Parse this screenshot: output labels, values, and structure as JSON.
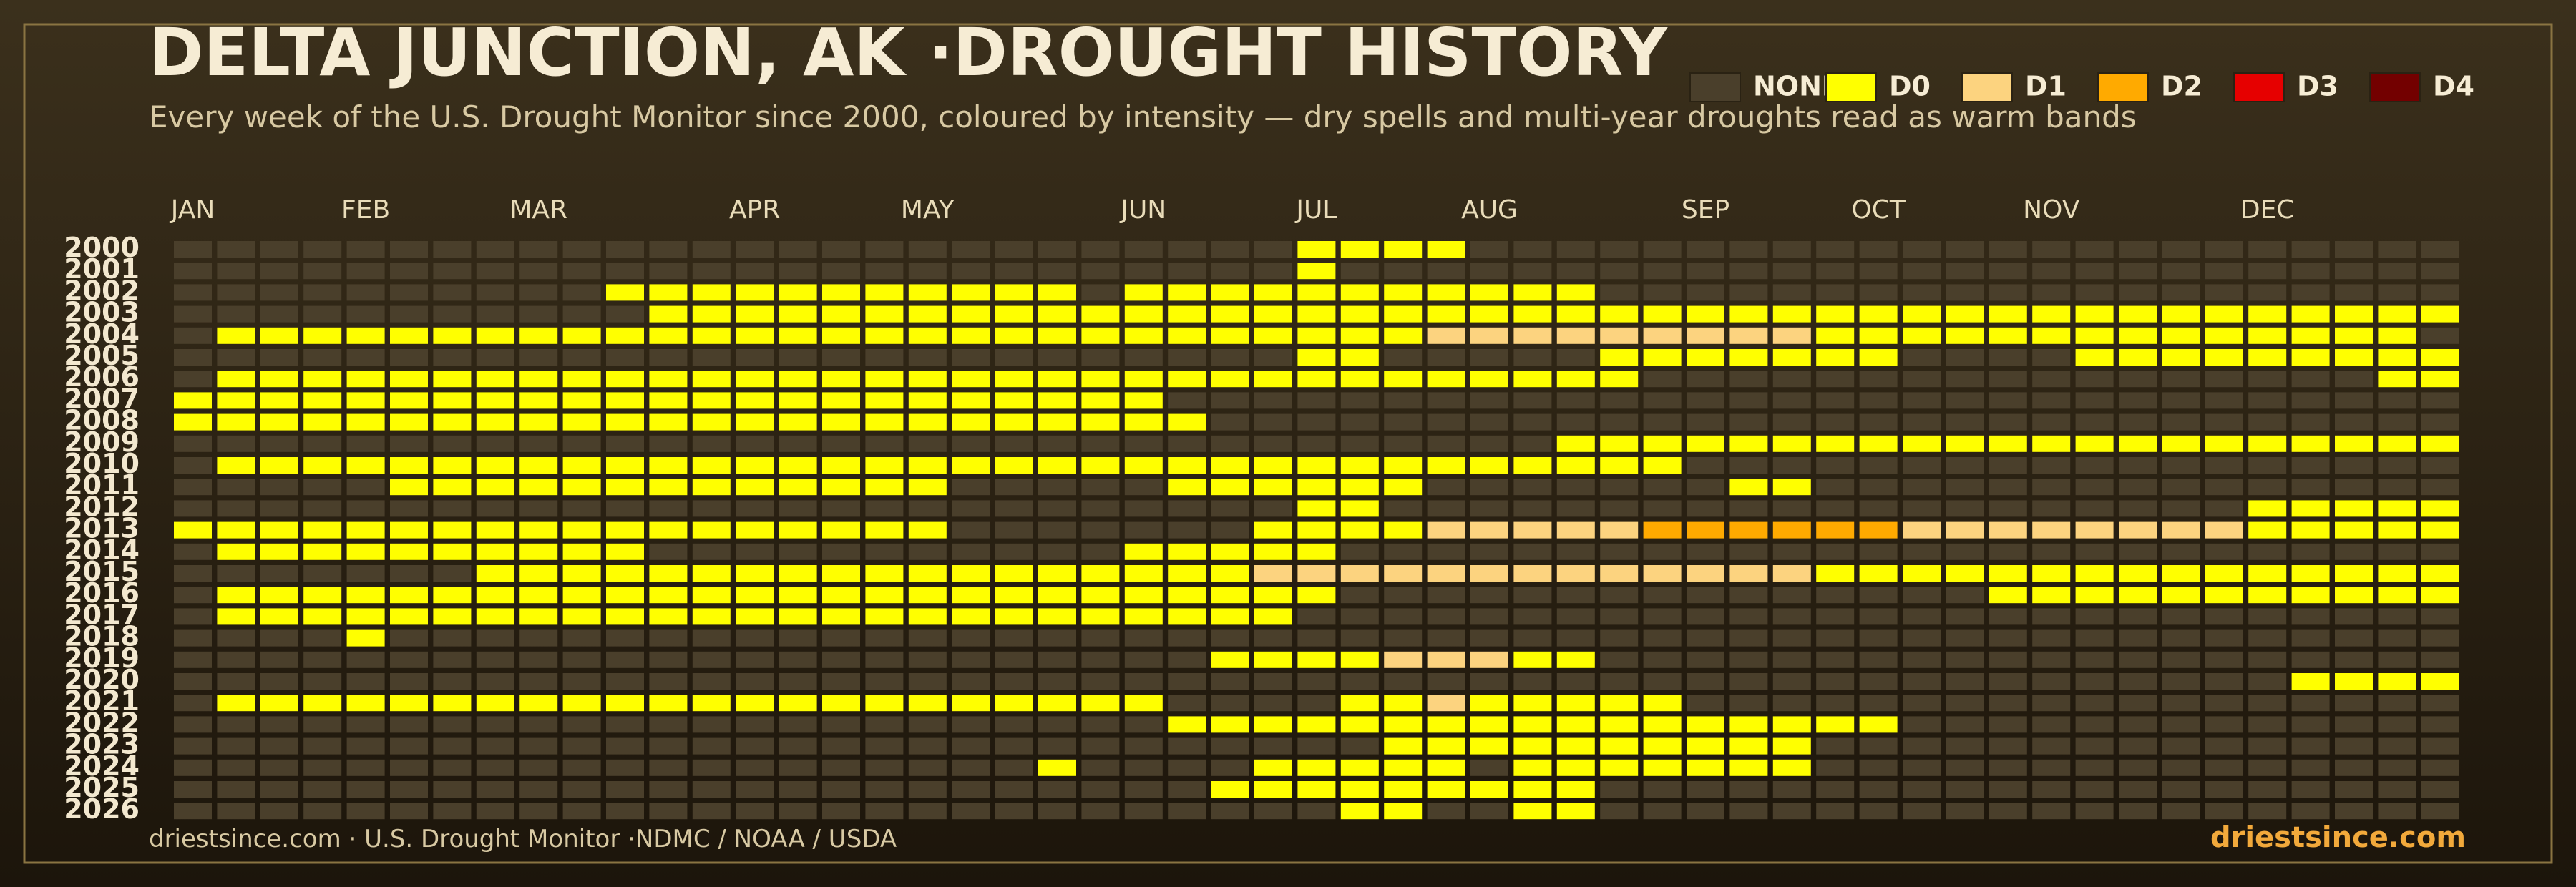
{
  "chart_data": {
    "type": "heatmap",
    "title": "DELTA JUNCTION, AK ·DROUGHT HISTORY",
    "subtitle": "Every week of the U.S. Drought Monitor since 2000, coloured by intensity — dry spells and multi-year droughts read as warm bands",
    "source": "driestsince.com  · U.S. Drought Monitor ·NDMC / NOAA / USDA",
    "brand": "driestsince.com",
    "months": [
      "JAN",
      "FEB",
      "MAR",
      "APR",
      "MAY",
      "JUN",
      "JUL",
      "AUG",
      "SEP",
      "OCT",
      "NOV",
      "DEC"
    ],
    "levels": [
      {
        "name": "NONE",
        "color": "#4a3f2b"
      },
      {
        "name": "D0",
        "color": "#ffff00"
      },
      {
        "name": "D1",
        "color": "#fcd37f"
      },
      {
        "name": "D2",
        "color": "#ffaa00"
      },
      {
        "name": "D3",
        "color": "#e60000"
      },
      {
        "name": "D4",
        "color": "#730000"
      }
    ],
    "years": [
      "2000",
      "2001",
      "2002",
      "2003",
      "2004",
      "2005",
      "2006",
      "2007",
      "2008",
      "2009",
      "2010",
      "2011",
      "2012",
      "2013",
      "2014",
      "2015",
      "2016",
      "2017",
      "2018",
      "2019",
      "2020",
      "2021",
      "2022",
      "2023",
      "2024",
      "2025",
      "2026"
    ],
    "values": [
      [
        0,
        0,
        0,
        0,
        0,
        0,
        0,
        0,
        0,
        0,
        0,
        0,
        0,
        0,
        0,
        0,
        0,
        0,
        0,
        0,
        0,
        0,
        0,
        0,
        0,
        0,
        1,
        1,
        1,
        1,
        0,
        0,
        0,
        0,
        0,
        0,
        0,
        0,
        0,
        0,
        0,
        0,
        0,
        0,
        0,
        0,
        0,
        0,
        0,
        0,
        0,
        0,
        0
      ],
      [
        0,
        0,
        0,
        0,
        0,
        0,
        0,
        0,
        0,
        0,
        0,
        0,
        0,
        0,
        0,
        0,
        0,
        0,
        0,
        0,
        0,
        0,
        0,
        0,
        0,
        0,
        1,
        0,
        0,
        0,
        0,
        0,
        0,
        0,
        0,
        0,
        0,
        0,
        0,
        0,
        0,
        0,
        0,
        0,
        0,
        0,
        0,
        0,
        0,
        0,
        0,
        0,
        0
      ],
      [
        0,
        0,
        0,
        0,
        0,
        0,
        0,
        0,
        0,
        0,
        1,
        1,
        1,
        1,
        1,
        1,
        1,
        1,
        1,
        1,
        1,
        0,
        1,
        1,
        1,
        1,
        1,
        1,
        1,
        1,
        1,
        1,
        1,
        0,
        0,
        0,
        0,
        0,
        0,
        0,
        0,
        0,
        0,
        0,
        0,
        0,
        0,
        0,
        0,
        0,
        0,
        0,
        0
      ],
      [
        0,
        0,
        0,
        0,
        0,
        0,
        0,
        0,
        0,
        0,
        0,
        1,
        1,
        1,
        1,
        1,
        1,
        1,
        1,
        1,
        1,
        1,
        1,
        1,
        1,
        1,
        1,
        1,
        1,
        1,
        1,
        1,
        1,
        1,
        1,
        1,
        1,
        1,
        1,
        1,
        1,
        1,
        1,
        1,
        1,
        1,
        1,
        1,
        1,
        1,
        1,
        1,
        1
      ],
      [
        0,
        1,
        1,
        1,
        1,
        1,
        1,
        1,
        1,
        1,
        1,
        1,
        1,
        1,
        1,
        1,
        1,
        1,
        1,
        1,
        1,
        1,
        1,
        1,
        1,
        1,
        1,
        1,
        1,
        2,
        2,
        2,
        2,
        2,
        2,
        2,
        2,
        2,
        1,
        1,
        1,
        1,
        1,
        1,
        1,
        1,
        1,
        1,
        1,
        1,
        1,
        1,
        0
      ],
      [
        0,
        0,
        0,
        0,
        0,
        0,
        0,
        0,
        0,
        0,
        0,
        0,
        0,
        0,
        0,
        0,
        0,
        0,
        0,
        0,
        0,
        0,
        0,
        0,
        0,
        0,
        1,
        1,
        0,
        0,
        0,
        0,
        0,
        1,
        1,
        1,
        1,
        1,
        1,
        1,
        0,
        0,
        0,
        0,
        1,
        1,
        1,
        1,
        1,
        1,
        1,
        1,
        1
      ],
      [
        0,
        1,
        1,
        1,
        1,
        1,
        1,
        1,
        1,
        1,
        1,
        1,
        1,
        1,
        1,
        1,
        1,
        1,
        1,
        1,
        1,
        1,
        1,
        1,
        1,
        1,
        1,
        1,
        1,
        1,
        1,
        1,
        1,
        1,
        0,
        0,
        0,
        0,
        0,
        0,
        0,
        0,
        0,
        0,
        0,
        0,
        0,
        0,
        0,
        0,
        0,
        1,
        1
      ],
      [
        1,
        1,
        1,
        1,
        1,
        1,
        1,
        1,
        1,
        1,
        1,
        1,
        1,
        1,
        1,
        1,
        1,
        1,
        1,
        1,
        1,
        1,
        1,
        0,
        0,
        0,
        0,
        0,
        0,
        0,
        0,
        0,
        0,
        0,
        0,
        0,
        0,
        0,
        0,
        0,
        0,
        0,
        0,
        0,
        0,
        0,
        0,
        0,
        0,
        0,
        0,
        0,
        0
      ],
      [
        1,
        1,
        1,
        1,
        1,
        1,
        1,
        1,
        1,
        1,
        1,
        1,
        1,
        1,
        1,
        1,
        1,
        1,
        1,
        1,
        1,
        1,
        1,
        1,
        0,
        0,
        0,
        0,
        0,
        0,
        0,
        0,
        0,
        0,
        0,
        0,
        0,
        0,
        0,
        0,
        0,
        0,
        0,
        0,
        0,
        0,
        0,
        0,
        0,
        0,
        0,
        0,
        0
      ],
      [
        0,
        0,
        0,
        0,
        0,
        0,
        0,
        0,
        0,
        0,
        0,
        0,
        0,
        0,
        0,
        0,
        0,
        0,
        0,
        0,
        0,
        0,
        0,
        0,
        0,
        0,
        0,
        0,
        0,
        0,
        0,
        0,
        1,
        1,
        1,
        1,
        1,
        1,
        1,
        1,
        1,
        1,
        1,
        1,
        1,
        1,
        1,
        1,
        1,
        1,
        1,
        1,
        1
      ],
      [
        0,
        1,
        1,
        1,
        1,
        1,
        1,
        1,
        1,
        1,
        1,
        1,
        1,
        1,
        1,
        1,
        1,
        1,
        1,
        1,
        1,
        1,
        1,
        1,
        1,
        1,
        1,
        1,
        1,
        1,
        1,
        1,
        1,
        1,
        1,
        0,
        0,
        0,
        0,
        0,
        0,
        0,
        0,
        0,
        0,
        0,
        0,
        0,
        0,
        0,
        0,
        0,
        0
      ],
      [
        0,
        0,
        0,
        0,
        0,
        1,
        1,
        1,
        1,
        1,
        1,
        1,
        1,
        1,
        1,
        1,
        1,
        1,
        0,
        0,
        0,
        0,
        0,
        1,
        1,
        1,
        1,
        1,
        1,
        0,
        0,
        0,
        0,
        0,
        0,
        0,
        1,
        1,
        0,
        0,
        0,
        0,
        0,
        0,
        0,
        0,
        0,
        0,
        0,
        0,
        0,
        0,
        0
      ],
      [
        0,
        0,
        0,
        0,
        0,
        0,
        0,
        0,
        0,
        0,
        0,
        0,
        0,
        0,
        0,
        0,
        0,
        0,
        0,
        0,
        0,
        0,
        0,
        0,
        0,
        0,
        1,
        1,
        0,
        0,
        0,
        0,
        0,
        0,
        0,
        0,
        0,
        0,
        0,
        0,
        0,
        0,
        0,
        0,
        0,
        0,
        0,
        0,
        1,
        1,
        1,
        1,
        1
      ],
      [
        1,
        1,
        1,
        1,
        1,
        1,
        1,
        1,
        1,
        1,
        1,
        1,
        1,
        1,
        1,
        1,
        1,
        1,
        0,
        0,
        0,
        0,
        0,
        0,
        0,
        1,
        1,
        1,
        1,
        2,
        2,
        2,
        2,
        2,
        3,
        3,
        3,
        3,
        3,
        3,
        2,
        2,
        2,
        2,
        2,
        2,
        2,
        2,
        1,
        1,
        1,
        1,
        1
      ],
      [
        0,
        1,
        1,
        1,
        1,
        1,
        1,
        1,
        1,
        1,
        1,
        0,
        0,
        0,
        0,
        0,
        0,
        0,
        0,
        0,
        0,
        0,
        1,
        1,
        1,
        1,
        1,
        0,
        0,
        0,
        0,
        0,
        0,
        0,
        0,
        0,
        0,
        0,
        0,
        0,
        0,
        0,
        0,
        0,
        0,
        0,
        0,
        0,
        0,
        0,
        0,
        0,
        0
      ],
      [
        0,
        0,
        0,
        0,
        0,
        0,
        0,
        1,
        1,
        1,
        1,
        1,
        1,
        1,
        1,
        1,
        1,
        1,
        1,
        1,
        1,
        1,
        1,
        1,
        1,
        2,
        2,
        2,
        2,
        2,
        2,
        2,
        2,
        2,
        2,
        2,
        2,
        2,
        1,
        1,
        1,
        1,
        1,
        1,
        1,
        1,
        1,
        1,
        1,
        1,
        1,
        1,
        1
      ],
      [
        0,
        1,
        1,
        1,
        1,
        1,
        1,
        1,
        1,
        1,
        1,
        1,
        1,
        1,
        1,
        1,
        1,
        1,
        1,
        1,
        1,
        1,
        1,
        1,
        1,
        1,
        1,
        0,
        0,
        0,
        0,
        0,
        0,
        0,
        0,
        0,
        0,
        0,
        0,
        0,
        0,
        0,
        1,
        1,
        1,
        1,
        1,
        1,
        1,
        1,
        1,
        1,
        1
      ],
      [
        0,
        1,
        1,
        1,
        1,
        1,
        1,
        1,
        1,
        1,
        1,
        1,
        1,
        1,
        1,
        1,
        1,
        1,
        1,
        1,
        1,
        1,
        1,
        1,
        1,
        1,
        0,
        0,
        0,
        0,
        0,
        0,
        0,
        0,
        0,
        0,
        0,
        0,
        0,
        0,
        0,
        0,
        0,
        0,
        0,
        0,
        0,
        0,
        0,
        0,
        0,
        0,
        0
      ],
      [
        0,
        0,
        0,
        0,
        1,
        0,
        0,
        0,
        0,
        0,
        0,
        0,
        0,
        0,
        0,
        0,
        0,
        0,
        0,
        0,
        0,
        0,
        0,
        0,
        0,
        0,
        0,
        0,
        0,
        0,
        0,
        0,
        0,
        0,
        0,
        0,
        0,
        0,
        0,
        0,
        0,
        0,
        0,
        0,
        0,
        0,
        0,
        0,
        0,
        0,
        0,
        0,
        0
      ],
      [
        0,
        0,
        0,
        0,
        0,
        0,
        0,
        0,
        0,
        0,
        0,
        0,
        0,
        0,
        0,
        0,
        0,
        0,
        0,
        0,
        0,
        0,
        0,
        0,
        1,
        1,
        1,
        1,
        2,
        2,
        2,
        1,
        1,
        0,
        0,
        0,
        0,
        0,
        0,
        0,
        0,
        0,
        0,
        0,
        0,
        0,
        0,
        0,
        0,
        0,
        0,
        0,
        0
      ],
      [
        0,
        0,
        0,
        0,
        0,
        0,
        0,
        0,
        0,
        0,
        0,
        0,
        0,
        0,
        0,
        0,
        0,
        0,
        0,
        0,
        0,
        0,
        0,
        0,
        0,
        0,
        0,
        0,
        0,
        0,
        0,
        0,
        0,
        0,
        0,
        0,
        0,
        0,
        0,
        0,
        0,
        0,
        0,
        0,
        0,
        0,
        0,
        0,
        0,
        1,
        1,
        1,
        1
      ],
      [
        0,
        1,
        1,
        1,
        1,
        1,
        1,
        1,
        1,
        1,
        1,
        1,
        1,
        1,
        1,
        1,
        1,
        1,
        1,
        1,
        1,
        1,
        1,
        0,
        0,
        0,
        0,
        1,
        1,
        2,
        1,
        1,
        1,
        1,
        1,
        0,
        0,
        0,
        0,
        0,
        0,
        0,
        0,
        0,
        0,
        0,
        0,
        0,
        0,
        0,
        0,
        0,
        0
      ],
      [
        0,
        0,
        0,
        0,
        0,
        0,
        0,
        0,
        0,
        0,
        0,
        0,
        0,
        0,
        0,
        0,
        0,
        0,
        0,
        0,
        0,
        0,
        0,
        1,
        1,
        1,
        1,
        1,
        1,
        1,
        1,
        1,
        1,
        1,
        1,
        1,
        1,
        1,
        1,
        1,
        0,
        0,
        0,
        0,
        0,
        0,
        0,
        0,
        0,
        0,
        0,
        0,
        0
      ],
      [
        0,
        0,
        0,
        0,
        0,
        0,
        0,
        0,
        0,
        0,
        0,
        0,
        0,
        0,
        0,
        0,
        0,
        0,
        0,
        0,
        0,
        0,
        0,
        0,
        0,
        0,
        0,
        0,
        1,
        1,
        1,
        1,
        1,
        1,
        1,
        1,
        1,
        1,
        0,
        0,
        0,
        0,
        0,
        0,
        0,
        0,
        0,
        0,
        0,
        0,
        0,
        0,
        0
      ],
      [
        0,
        0,
        0,
        0,
        0,
        0,
        0,
        0,
        0,
        0,
        0,
        0,
        0,
        0,
        0,
        0,
        0,
        0,
        0,
        0,
        1,
        0,
        0,
        0,
        0,
        1,
        1,
        1,
        1,
        1,
        0,
        1,
        1,
        1,
        1,
        1,
        1,
        1,
        0,
        0,
        0,
        0,
        0,
        0,
        0,
        0,
        0,
        0,
        0,
        0,
        0,
        0,
        0
      ],
      [
        0,
        0,
        0,
        0,
        0,
        0,
        0,
        0,
        0,
        0,
        0,
        0,
        0,
        0,
        0,
        0,
        0,
        0,
        0,
        0,
        0,
        0,
        0,
        0,
        1,
        1,
        1,
        1,
        1,
        1,
        1,
        1,
        1,
        0,
        0,
        0,
        0,
        0,
        0,
        0,
        0,
        0,
        0,
        0,
        0,
        0,
        0,
        0,
        0,
        0,
        0,
        0,
        0
      ],
      [
        0,
        0,
        0,
        0,
        0,
        0,
        0,
        0,
        0,
        0,
        0,
        0,
        0,
        0,
        0,
        0,
        0,
        0,
        0,
        0,
        0,
        0,
        0,
        0,
        0,
        0,
        0,
        1,
        1,
        0,
        0,
        1,
        1,
        0,
        0,
        0,
        0,
        0,
        0,
        0,
        0,
        0,
        0,
        0,
        0,
        0,
        0,
        0,
        0,
        0,
        0,
        0,
        0
      ]
    ]
  }
}
